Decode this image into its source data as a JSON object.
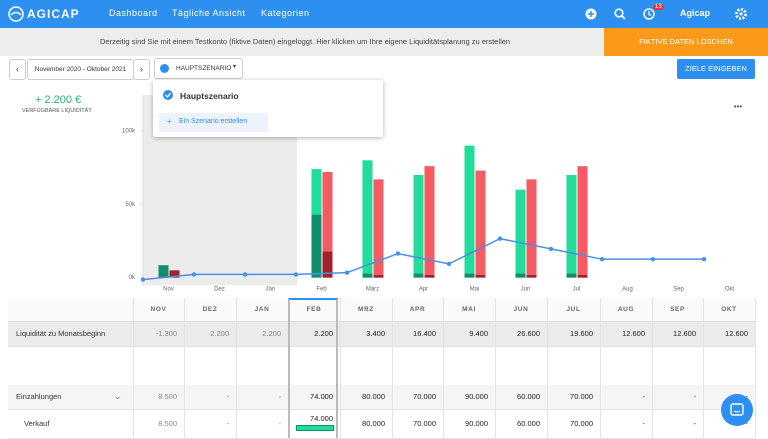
{
  "nav": {
    "logo": "AGICAP",
    "links": [
      "Dashboard",
      "Tägliche Ansicht",
      "Kategorien"
    ],
    "badge": "13",
    "account": "Agicap"
  },
  "banner": {
    "text": "Derzeitig sind Sie mit einem Testkonto (fiktive Daten) eingeloggt. Hier klicken um Ihre eigene Liquiditätsplanung zu erstellen",
    "button": "FIKTIVE DATEN LÖSCHEN"
  },
  "toolbar": {
    "period": "November 2020 - Oktober 2021",
    "scenario": "HAUPTSZENARIO",
    "button": "ZIELE EINGEBEN"
  },
  "summary": {
    "amount": "+ 2.200 €",
    "label": "VERFÜGBARE LIQUIDITÄT"
  },
  "dropdown": {
    "selected": "Hauptszenario",
    "create": "Ein Szenario erstellen"
  },
  "chart_data": {
    "type": "bar",
    "categories": [
      "Nov",
      "Dez",
      "Jan",
      "Feb",
      "März",
      "Apr",
      "Mai",
      "Jun",
      "Jul",
      "Aug",
      "Sep",
      "Okt"
    ],
    "series": [
      {
        "color": "#0f8f6e",
        "values": [
          8.5,
          null,
          null,
          43,
          3,
          3,
          3,
          3,
          3,
          null,
          null,
          null
        ]
      },
      {
        "color": "#22dc9c",
        "values": [
          null,
          null,
          null,
          31,
          77,
          67,
          87,
          57,
          67,
          null,
          null,
          null
        ]
      },
      {
        "color": "#a51f2c",
        "values": [
          5,
          null,
          null,
          18,
          2,
          2,
          2,
          2,
          2,
          null,
          null,
          null
        ]
      },
      {
        "color": "#f65a63",
        "values": [
          null,
          null,
          null,
          54,
          65,
          74,
          71,
          65,
          74,
          null,
          null,
          null
        ]
      },
      {
        "type": "line",
        "color": "#4a90e2",
        "values": [
          -1.3,
          2.2,
          2.2,
          2.2,
          3.4,
          16.4,
          9.4,
          26.6,
          19.6,
          12.6,
          12.6,
          12.6
        ]
      }
    ],
    "ylim": [
      -5,
      124.5
    ],
    "yticks": [
      {
        "value": 0,
        "label": "0k"
      },
      {
        "value": 50,
        "label": "50k"
      },
      {
        "value": 100,
        "label": "100k"
      }
    ],
    "grid": false
  },
  "table": {
    "columns": [
      "NOV",
      "DEZ",
      "JAN",
      "FEB",
      "MRZ",
      "APR",
      "MAI",
      "JUN",
      "JUL",
      "AUG",
      "SEP",
      "OKT"
    ],
    "rows": [
      [
        "Liquidität zu Monatsbeginn",
        "-1.300",
        "2.200",
        "2.200",
        "2.200",
        "3.400",
        "16.400",
        "9.400",
        "26.600",
        "19.600",
        "12.600",
        "12.600",
        "12.600"
      ],
      [
        "Einzahlungen",
        "8.500",
        "-",
        "-",
        "74.000",
        "80.000",
        "70.000",
        "90.000",
        "60.000",
        "70.000",
        "-",
        "-",
        "-"
      ],
      [
        "Verkauf",
        "8.500",
        "-",
        "-",
        "74.000",
        "80.000",
        "70.000",
        "90.000",
        "60.000",
        "70.000",
        "-",
        "-",
        "-"
      ]
    ]
  }
}
